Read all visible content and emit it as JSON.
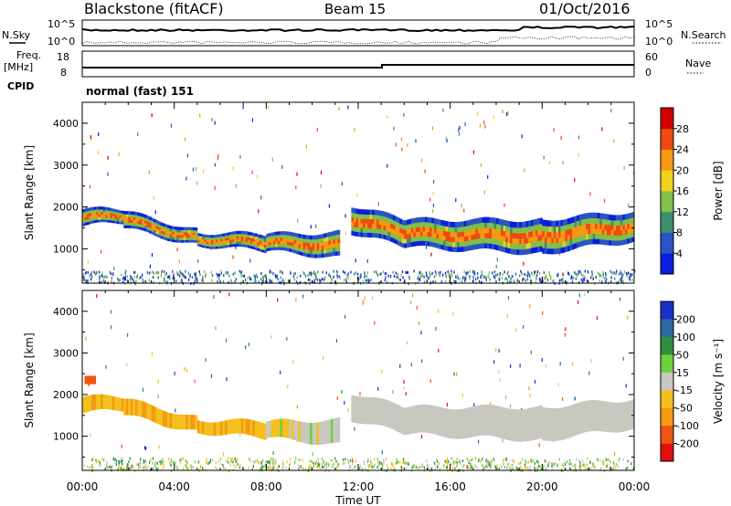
{
  "header": {
    "station": "Blackstone (fitACF)",
    "beam": "Beam 15",
    "date": "01/Oct/2016"
  },
  "panels": {
    "nsky_label": "N.Sky",
    "nsearch_label": "N.Search",
    "freq_label": "Freq.",
    "freq_unit": "[MHz]",
    "cpid_label": "CPID",
    "nave_label": "Nave",
    "cpid_text": "normal (fast) 151",
    "noise_ticks_left": [
      "10^5",
      "10^0"
    ],
    "noise_ticks_right": [
      "10^5",
      "10^0"
    ],
    "freq_ticks": [
      "18",
      "8"
    ],
    "nave_ticks": [
      "60",
      "0"
    ]
  },
  "chart_data": [
    {
      "type": "heatmap",
      "title": "Power",
      "ylabel": "Slant Range [km]",
      "xlabel": "Time UT",
      "x_ticks": [
        "00:00",
        "04:00",
        "08:00",
        "12:00",
        "16:00",
        "20:00",
        "00:00"
      ],
      "y_ticks": [
        1000,
        2000,
        3000,
        4000
      ],
      "ylim": [
        180,
        4500
      ],
      "colorbar_label": "Power [dB]",
      "colorbar_ticks": [
        4,
        8,
        12,
        16,
        20,
        24,
        28
      ],
      "colors": [
        "#0a1ee0",
        "#2a54c4",
        "#3c8f6a",
        "#7fbf4a",
        "#f1d21a",
        "#f39a12",
        "#ee4a12",
        "#d00000"
      ]
    },
    {
      "type": "heatmap",
      "title": "Velocity",
      "ylabel": "Slant Range [km]",
      "xlabel": "Time UT",
      "x_ticks": [
        "00:00",
        "04:00",
        "08:00",
        "12:00",
        "16:00",
        "20:00",
        "00:00"
      ],
      "y_ticks": [
        1000,
        2000,
        3000,
        4000
      ],
      "ylim": [
        180,
        4500
      ],
      "colorbar_label": "Velocity [m s⁻¹]",
      "colorbar_ticks": [
        200,
        100,
        50,
        15,
        -15,
        -50,
        -100,
        -200
      ],
      "colors": [
        "#1830c8",
        "#2c6aa0",
        "#2e8f3e",
        "#6fcf3f",
        "#c8c8c0",
        "#f4c020",
        "#f39a12",
        "#ee5510",
        "#e01010"
      ]
    }
  ],
  "bands": [
    {
      "t0": 0.0,
      "t1": 2.0,
      "r0": 1550,
      "r1": 1950,
      "r1b": 1950,
      "r0b": 1650
    },
    {
      "t0": 1.8,
      "t1": 5.0,
      "r0": 1500,
      "r1": 1900,
      "r1b": 1450,
      "r0b": 1100
    },
    {
      "t0": 5.0,
      "t1": 8.0,
      "r0": 1100,
      "r1": 1400,
      "r1b": 1350,
      "r0b": 950
    },
    {
      "t0": 8.0,
      "t1": 11.2,
      "r0": 950,
      "r1": 1350,
      "r1b": 1400,
      "r0b": 800
    },
    {
      "t0": 11.7,
      "t1": 14.0,
      "r0": 1400,
      "r1": 2050,
      "r1b": 1700,
      "r0b": 1050
    },
    {
      "t0": 14.0,
      "t1": 20.0,
      "r0": 1050,
      "r1": 1700,
      "r1b": 1700,
      "r0b": 900
    },
    {
      "t0": 20.0,
      "t1": 24.0,
      "r0": 900,
      "r1": 1700,
      "r1b": 1900,
      "r0b": 1200
    }
  ]
}
